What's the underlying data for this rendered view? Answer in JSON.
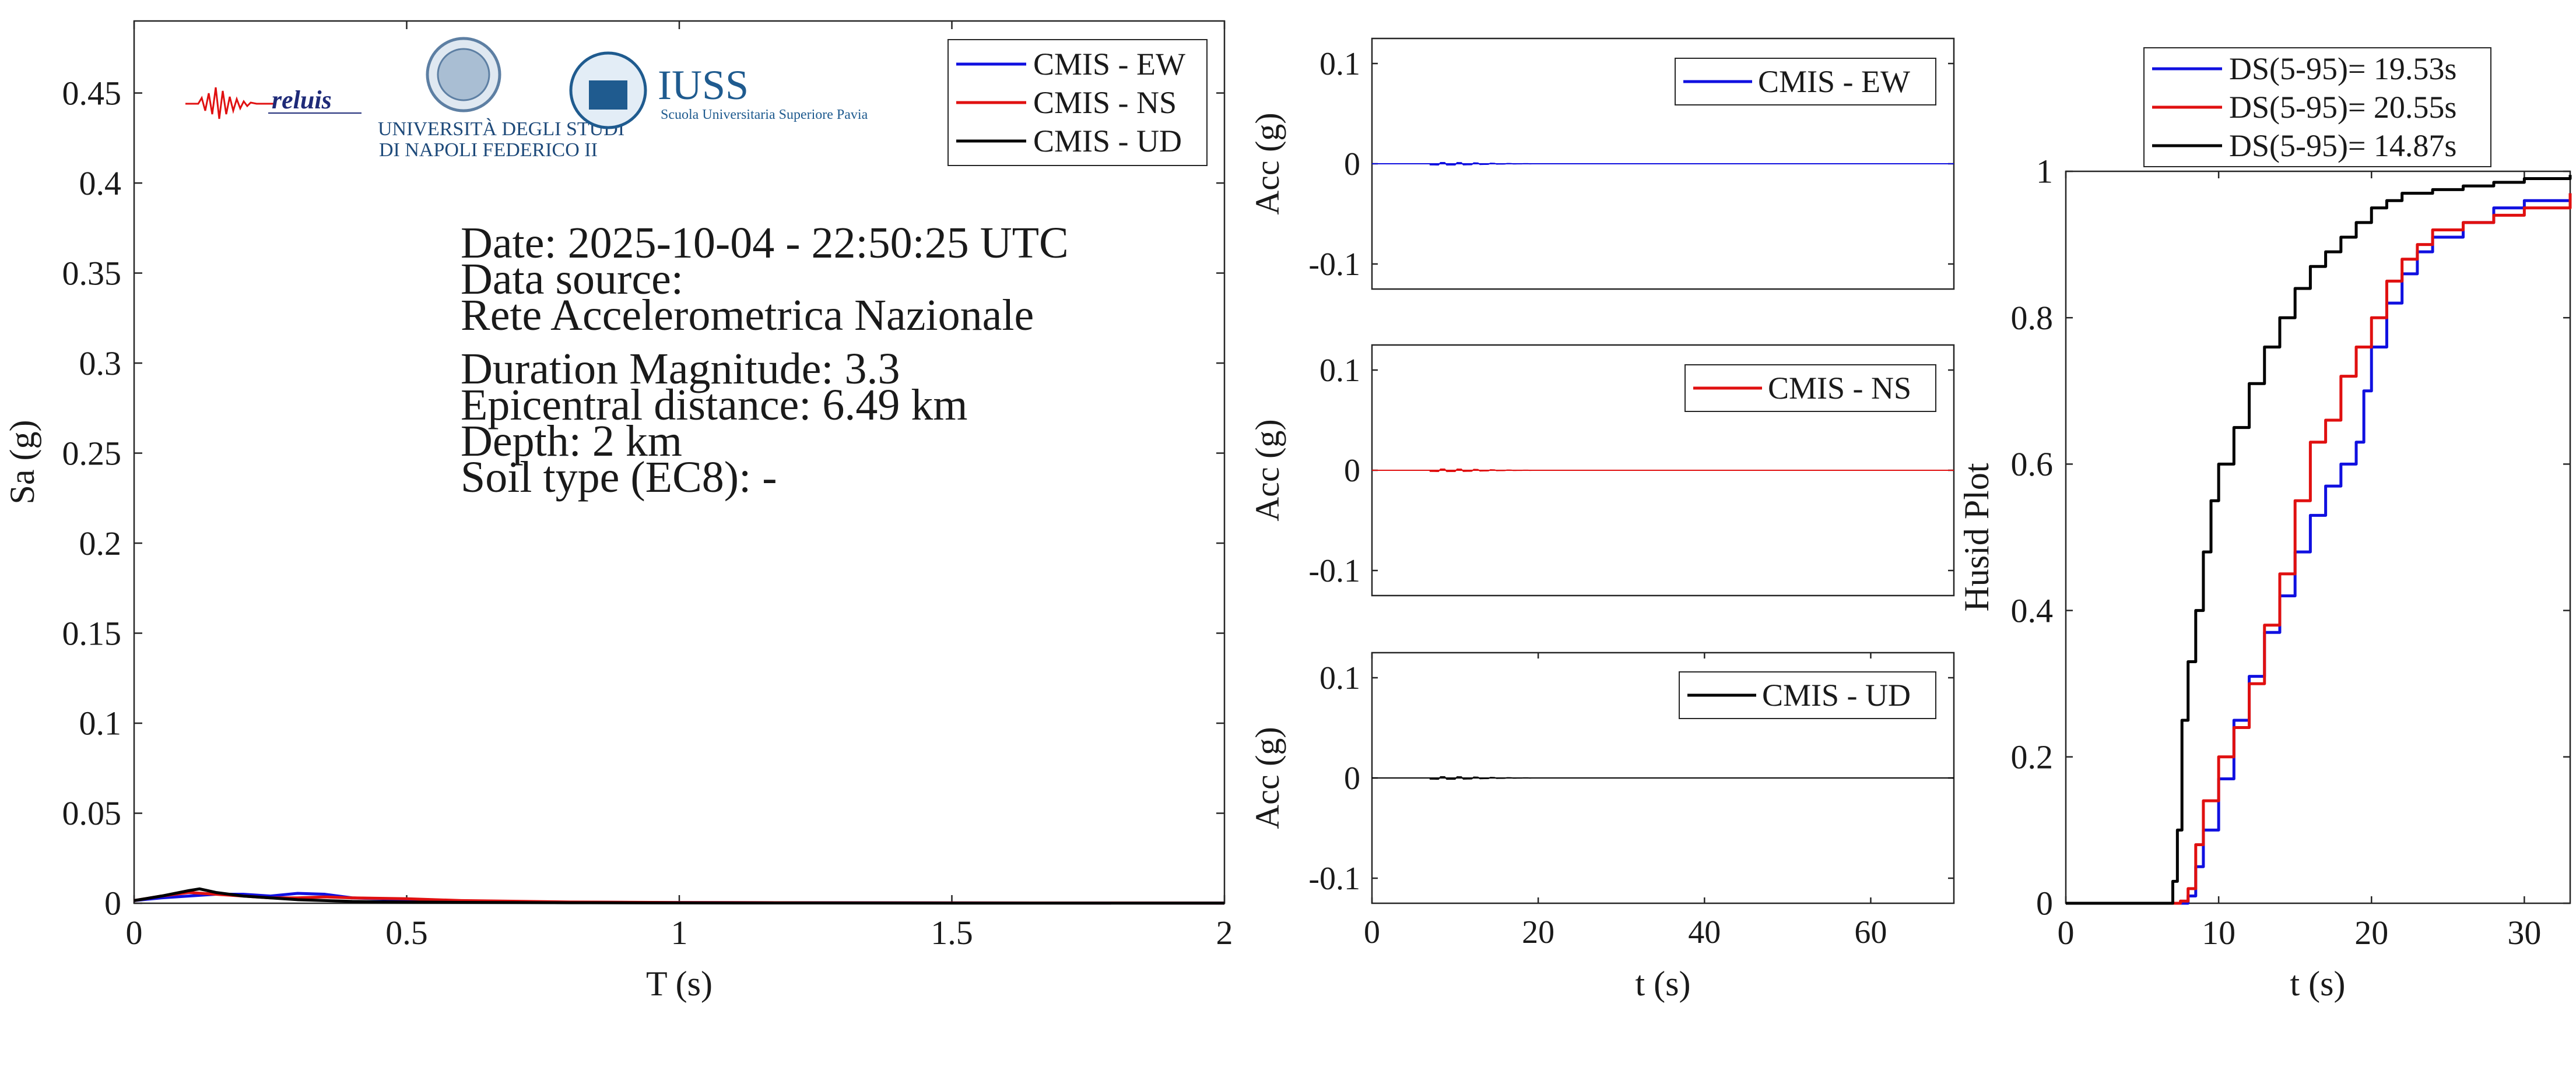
{
  "colors": {
    "ew": "#1010e0",
    "ns": "#e01010",
    "ud": "#000000",
    "axis": "#262626"
  },
  "logos": {
    "reluis": "reluis",
    "unina_line1": "UNIVERSITÀ DEGLI STUDI",
    "unina_line2": "DI NAPOLI FEDERICO II",
    "iuss": "IUSS",
    "iuss_sub": "Scuola Universitaria Superiore Pavia"
  },
  "info": {
    "date": "Date: 2025-10-04 - 22:50:25 UTC",
    "source_label": "Data source:",
    "source": "Rete Accelerometrica Nazionale",
    "magnitude": "Duration Magnitude: 3.3",
    "distance": "Epicentral distance: 6.49 km",
    "depth": "Depth: 2 km",
    "soil": "Soil type (EC8): -"
  },
  "chart_data": [
    {
      "type": "line",
      "id": "spectrum",
      "xlabel": "T (s)",
      "ylabel": "Sa (g)",
      "xlim": [
        0,
        2
      ],
      "ylim": [
        0,
        0.49
      ],
      "xticks": [
        0,
        0.5,
        1,
        1.5,
        2
      ],
      "xtick_labels": [
        "0",
        "0.5",
        "1",
        "1.5",
        "2"
      ],
      "yticks": [
        0,
        0.05,
        0.1,
        0.15,
        0.2,
        0.25,
        0.3,
        0.35,
        0.4,
        0.45
      ],
      "ytick_labels": [
        "0",
        "0.05",
        "0.1",
        "0.15",
        "0.2",
        "0.25",
        "0.3",
        "0.35",
        "0.4",
        "0.45"
      ],
      "legend_position": "top-right",
      "series": [
        {
          "name": "CMIS - EW",
          "color": "#1010e0",
          "x": [
            0,
            0.05,
            0.1,
            0.15,
            0.2,
            0.25,
            0.3,
            0.35,
            0.4,
            0.5,
            0.6,
            0.8,
            1.0,
            1.5,
            2.0
          ],
          "y": [
            0.0015,
            0.003,
            0.004,
            0.005,
            0.005,
            0.004,
            0.0055,
            0.005,
            0.003,
            0.002,
            0.0012,
            0.0006,
            0.0004,
            0.0002,
            0.0001
          ]
        },
        {
          "name": "CMIS - NS",
          "color": "#e01010",
          "x": [
            0,
            0.05,
            0.1,
            0.15,
            0.2,
            0.25,
            0.3,
            0.35,
            0.4,
            0.5,
            0.6,
            0.8,
            1.0,
            1.5,
            2.0
          ],
          "y": [
            0.0015,
            0.004,
            0.006,
            0.005,
            0.004,
            0.003,
            0.003,
            0.0035,
            0.003,
            0.0025,
            0.0015,
            0.0007,
            0.0004,
            0.0002,
            0.0001
          ]
        },
        {
          "name": "CMIS - UD",
          "color": "#000000",
          "x": [
            0,
            0.05,
            0.1,
            0.12,
            0.15,
            0.2,
            0.25,
            0.3,
            0.35,
            0.4,
            0.5,
            0.6,
            0.8,
            1.0,
            1.5,
            2.0
          ],
          "y": [
            0.0015,
            0.004,
            0.007,
            0.008,
            0.006,
            0.004,
            0.003,
            0.002,
            0.0015,
            0.001,
            0.0007,
            0.0005,
            0.0003,
            0.0002,
            0.0001,
            0.0001
          ]
        }
      ]
    },
    {
      "type": "line",
      "id": "acc_ew",
      "ylabel": "Acc (g)",
      "xlim": [
        0,
        70
      ],
      "ylim": [
        -0.125,
        0.125
      ],
      "yticks": [
        -0.1,
        0,
        0.1
      ],
      "ytick_labels": [
        "-0.1",
        "0",
        "0.1"
      ],
      "legend_position": "top-right",
      "series": [
        {
          "name": "CMIS - EW",
          "color": "#1010e0",
          "x": [
            0,
            70
          ],
          "y": [
            0,
            0
          ]
        }
      ]
    },
    {
      "type": "line",
      "id": "acc_ns",
      "ylabel": "Acc (g)",
      "xlim": [
        0,
        70
      ],
      "ylim": [
        -0.125,
        0.125
      ],
      "yticks": [
        -0.1,
        0,
        0.1
      ],
      "ytick_labels": [
        "-0.1",
        "0",
        "0.1"
      ],
      "legend_position": "top-right",
      "series": [
        {
          "name": "CMIS - NS",
          "color": "#e01010",
          "x": [
            0,
            70
          ],
          "y": [
            0,
            0
          ]
        }
      ]
    },
    {
      "type": "line",
      "id": "acc_ud",
      "xlabel": "t (s)",
      "ylabel": "Acc (g)",
      "xlim": [
        0,
        70
      ],
      "ylim": [
        -0.125,
        0.125
      ],
      "xticks": [
        0,
        20,
        40,
        60
      ],
      "xtick_labels": [
        "0",
        "20",
        "40",
        "60"
      ],
      "yticks": [
        -0.1,
        0,
        0.1
      ],
      "ytick_labels": [
        "-0.1",
        "0",
        "0.1"
      ],
      "legend_position": "top-right",
      "series": [
        {
          "name": "CMIS - UD",
          "color": "#000000",
          "x": [
            0,
            70
          ],
          "y": [
            0,
            0
          ]
        }
      ]
    },
    {
      "type": "line",
      "id": "husid",
      "xlabel": "t (s)",
      "ylabel": "Husid Plot",
      "xlim": [
        0,
        33
      ],
      "ylim": [
        0,
        1
      ],
      "xticks": [
        0,
        10,
        20,
        30
      ],
      "xtick_labels": [
        "0",
        "10",
        "20",
        "30"
      ],
      "yticks": [
        0,
        0.2,
        0.4,
        0.6,
        0.8,
        1
      ],
      "ytick_labels": [
        "0",
        "0.2",
        "0.4",
        "0.6",
        "0.8",
        "1"
      ],
      "legend_position": "top-outside",
      "series": [
        {
          "name": "DS(5-95)= 19.53s",
          "color": "#1010e0",
          "x": [
            0,
            7.0,
            7.5,
            8.0,
            8.5,
            9.0,
            10,
            11,
            12,
            13,
            14,
            15,
            16,
            17,
            18,
            19,
            19.5,
            20,
            21,
            22,
            23,
            24,
            26,
            28,
            30,
            33
          ],
          "y": [
            0,
            0,
            0,
            0.01,
            0.05,
            0.1,
            0.17,
            0.25,
            0.31,
            0.37,
            0.42,
            0.48,
            0.53,
            0.57,
            0.6,
            0.63,
            0.7,
            0.76,
            0.82,
            0.86,
            0.89,
            0.91,
            0.93,
            0.95,
            0.96,
            0.97
          ]
        },
        {
          "name": "DS(5-95)= 20.55s",
          "color": "#e01010",
          "x": [
            0,
            7.0,
            7.5,
            8.0,
            8.5,
            9.0,
            10,
            11,
            12,
            13,
            14,
            15,
            16,
            17,
            18,
            19,
            20,
            21,
            22,
            23,
            24,
            26,
            28,
            30,
            33
          ],
          "y": [
            0,
            0,
            0.003,
            0.02,
            0.08,
            0.14,
            0.2,
            0.24,
            0.3,
            0.38,
            0.45,
            0.55,
            0.63,
            0.66,
            0.72,
            0.76,
            0.8,
            0.85,
            0.88,
            0.9,
            0.92,
            0.93,
            0.94,
            0.95,
            0.97
          ]
        },
        {
          "name": "DS(5-95)= 14.87s",
          "color": "#000000",
          "x": [
            0,
            6.8,
            7.0,
            7.3,
            7.6,
            8,
            8.5,
            9,
            9.5,
            10,
            11,
            12,
            13,
            14,
            15,
            16,
            17,
            18,
            19,
            20,
            21,
            22,
            24,
            26,
            28,
            30,
            33
          ],
          "y": [
            0,
            0,
            0.03,
            0.1,
            0.25,
            0.33,
            0.4,
            0.48,
            0.55,
            0.6,
            0.65,
            0.71,
            0.76,
            0.8,
            0.84,
            0.87,
            0.89,
            0.91,
            0.93,
            0.95,
            0.96,
            0.97,
            0.975,
            0.98,
            0.985,
            0.99,
            0.995
          ]
        }
      ]
    }
  ]
}
